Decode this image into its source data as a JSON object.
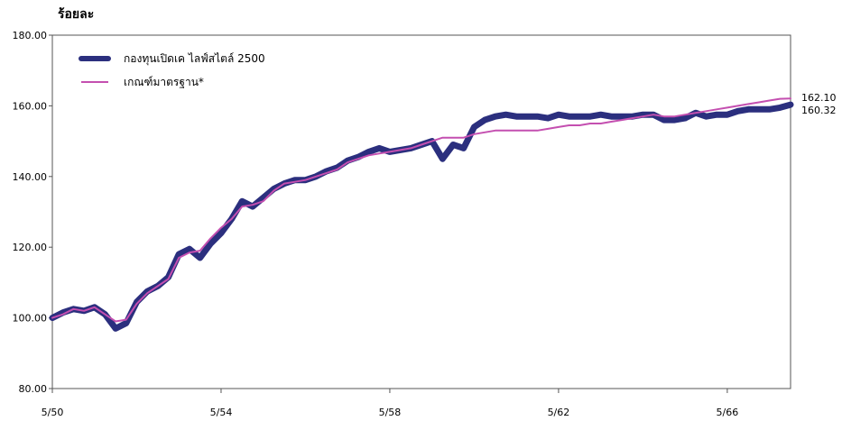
{
  "chart_data": {
    "type": "line",
    "ylabel": "ร้อยละ",
    "ylim": [
      80,
      180
    ],
    "yticks": [
      "180.00",
      "160.00",
      "140.00",
      "120.00",
      "100.00",
      "80.00"
    ],
    "ytick_values": [
      180,
      160,
      140,
      120,
      100,
      80
    ],
    "xlim": [
      0,
      70
    ],
    "xticks": [
      "5/50",
      "5/54",
      "5/58",
      "5/62",
      "5/66"
    ],
    "xtick_values": [
      0,
      16,
      32,
      48,
      64
    ],
    "grid": false,
    "legend_position": "top-left",
    "series": [
      {
        "name": "กองทุนเปิดเค ไลฟ์สไตล์ 2500",
        "color": "#2b2f7e",
        "style": "thick",
        "x": [
          0,
          1,
          2,
          3,
          4,
          5,
          6,
          7,
          8,
          9,
          10,
          11,
          12,
          13,
          14,
          15,
          16,
          17,
          18,
          19,
          20,
          21,
          22,
          23,
          24,
          25,
          26,
          27,
          28,
          29,
          30,
          31,
          32,
          33,
          34,
          35,
          36,
          37,
          38,
          39,
          40,
          41,
          42,
          43,
          44,
          45,
          46,
          47,
          48,
          49,
          50,
          51,
          52,
          53,
          54,
          55,
          56,
          57,
          58,
          59,
          60,
          61,
          62,
          63,
          64,
          65,
          66,
          67,
          68,
          69,
          70
        ],
        "values": [
          100,
          101.5,
          102.5,
          102,
          103,
          101,
          97,
          98.5,
          104.5,
          107.5,
          109,
          111.5,
          118,
          119.5,
          117,
          121,
          124,
          128,
          133,
          131.5,
          134,
          136.5,
          138,
          139,
          139,
          140,
          141.5,
          142.5,
          144.5,
          145.5,
          147,
          148,
          147,
          147.5,
          148,
          149,
          150,
          145,
          149,
          148,
          154,
          156,
          157,
          157.5,
          157,
          157,
          157,
          156.5,
          157.5,
          157,
          157,
          157,
          157.5,
          157,
          157,
          157,
          157.5,
          157.5,
          156,
          156,
          156.5,
          158,
          157,
          157.5,
          157.5,
          158.5,
          159,
          159,
          159,
          159.5,
          160.32
        ],
        "end_label": "160.32"
      },
      {
        "name": "เกณฑ์มาตรฐาน*",
        "color": "#c44fb0",
        "style": "thin",
        "x": [
          0,
          1,
          2,
          3,
          4,
          5,
          6,
          7,
          8,
          9,
          10,
          11,
          12,
          13,
          14,
          15,
          16,
          17,
          18,
          19,
          20,
          21,
          22,
          23,
          24,
          25,
          26,
          27,
          28,
          29,
          30,
          31,
          32,
          33,
          34,
          35,
          36,
          37,
          38,
          39,
          40,
          41,
          42,
          43,
          44,
          45,
          46,
          47,
          48,
          49,
          50,
          51,
          52,
          53,
          54,
          55,
          56,
          57,
          58,
          59,
          60,
          61,
          62,
          63,
          64,
          65,
          66,
          67,
          68,
          69,
          70
        ],
        "values": [
          100,
          101,
          102.5,
          102,
          103,
          101,
          99,
          99.5,
          104,
          107,
          109,
          111,
          117,
          118.5,
          119,
          122.5,
          125.5,
          128,
          131.5,
          132,
          133,
          136,
          138,
          138.5,
          139,
          140,
          141,
          142,
          144,
          145,
          146,
          146.5,
          147,
          147.5,
          148,
          149,
          150,
          151,
          151,
          151,
          152,
          152.5,
          153,
          153,
          153,
          153,
          153,
          153.5,
          154,
          154.5,
          154.5,
          155,
          155,
          155.5,
          156,
          156.5,
          157,
          157.5,
          157,
          157,
          157.5,
          158,
          158.5,
          159,
          159.5,
          160,
          160.5,
          161,
          161.5,
          162,
          162.1
        ],
        "end_label": "162.10"
      }
    ]
  }
}
